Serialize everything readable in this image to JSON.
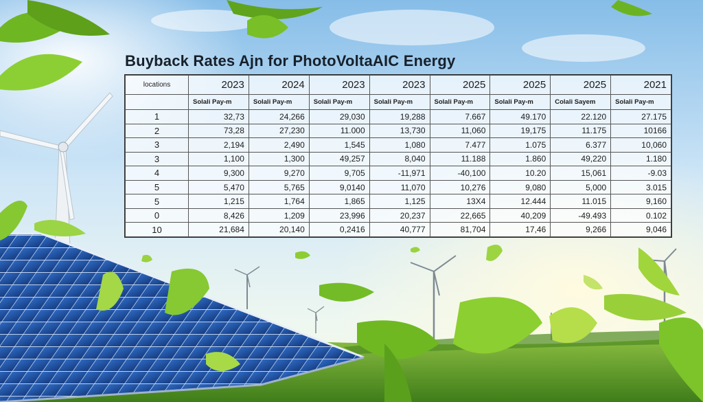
{
  "page": {
    "title": "Buyback Rates Ajn for PhotoVoltaAIC Energy"
  },
  "table": {
    "corner_label": "locations",
    "years": [
      "2023",
      "2024",
      "2023",
      "2023",
      "2025",
      "2025",
      "2025",
      "2021"
    ],
    "subheaders": [
      "Solali Pay-m",
      "Solali Pay-m",
      "Solali Pay-m",
      "Solali Pay-m",
      "Solali Pay-m",
      "Solali Pay-m",
      "Colali Sayem",
      "Solali Pay-m"
    ],
    "rows": [
      {
        "idx": "1",
        "cells": [
          "32,73",
          "24,266",
          "29,030",
          "19,288",
          "7.667",
          "49.170",
          "22.120",
          "27.175"
        ]
      },
      {
        "idx": "2",
        "cells": [
          "73,28",
          "27,230",
          "11.000",
          "13,730",
          "11,060",
          "19,175",
          "11.175",
          "10166"
        ]
      },
      {
        "idx": "3",
        "cells": [
          "2,194",
          "2,490",
          "1,545",
          "1,080",
          "7.477",
          "1.075",
          "6.377",
          "10,060"
        ]
      },
      {
        "idx": "3",
        "cells": [
          "1,100",
          "1,300",
          "49,257",
          "8,040",
          "11.188",
          "1.860",
          "49,220",
          "1.180"
        ]
      },
      {
        "idx": "4",
        "cells": [
          "9,300",
          "9,270",
          "9,705",
          "-11,971",
          "-40,100",
          "10.20",
          "15,061",
          "-9.03"
        ]
      },
      {
        "idx": "5",
        "cells": [
          "5,470",
          "5,765",
          "9,0140",
          "11,070",
          "10,276",
          "9,080",
          "5,000",
          "3.015"
        ]
      },
      {
        "idx": "5",
        "cells": [
          "1,215",
          "1,764",
          "1,865",
          "1,125",
          "13X4",
          "12.444",
          "11.015",
          "9,160"
        ]
      },
      {
        "idx": "0",
        "cells": [
          "8,426",
          "1,209",
          "23,996",
          "20,237",
          "22,665",
          "40,209",
          "-49.493",
          "0.102"
        ]
      },
      {
        "idx": "10",
        "cells": [
          "21,684",
          "20,140",
          "0,2416",
          "40,777",
          "81,704",
          "17,46",
          "9,266",
          "9,046"
        ]
      }
    ]
  },
  "colors": {
    "sky_top": "#9ccbee",
    "panel_blue": "#1f4f9c",
    "grass": "#5f9d24",
    "leaf": "#6fbf2a"
  },
  "icons": [
    "wind-turbine-icon",
    "solar-panel-icon",
    "leaf-icon"
  ]
}
